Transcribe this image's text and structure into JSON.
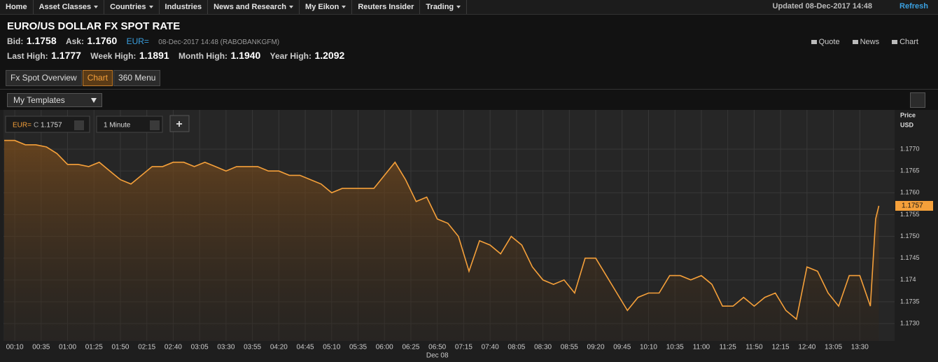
{
  "nav": {
    "items": [
      {
        "label": "Home",
        "menu": false
      },
      {
        "label": "Asset Classes",
        "menu": true
      },
      {
        "label": "Countries",
        "menu": true
      },
      {
        "label": "Industries",
        "menu": false
      },
      {
        "label": "News and Research",
        "menu": true
      },
      {
        "label": "My Eikon",
        "menu": true
      },
      {
        "label": "Reuters Insider",
        "menu": false
      },
      {
        "label": "Trading",
        "menu": true
      }
    ],
    "updated": "Updated 08-Dec-2017 14:48",
    "refresh": "Refresh"
  },
  "header": {
    "title": "EURO/US DOLLAR FX SPOT RATE",
    "bid_label": "Bid:",
    "bid": "1.1758",
    "ask_label": "Ask:",
    "ask": "1.1760",
    "ric": "EUR=",
    "timestamp": "08-Dec-2017 14:48 (RABOBANKGFM)",
    "last_high_label": "Last High:",
    "last_high": "1.1777",
    "week_high_label": "Week High:",
    "week_high": "1.1891",
    "month_high_label": "Month High:",
    "month_high": "1.1940",
    "year_high_label": "Year High:",
    "year_high": "1.2092",
    "links": [
      "Quote",
      "News",
      "Chart"
    ]
  },
  "tabs": [
    "Fx Spot Overview",
    "Chart",
    "360 Menu"
  ],
  "templates": "My Templates",
  "chart_data": {
    "type": "line",
    "price_prefix": "C",
    "interval": "1 Minute",
    "add_button": "+",
    "axis_title": "Price",
    "axis_unit": "USD",
    "x_group_label": "Dec 08",
    "grid": true,
    "xlim": [
      "00:00",
      "13:48"
    ],
    "ylim": [
      1.1726,
      1.1779
    ],
    "yticks": [
      {
        "value": 1.173,
        "label": "1.1730"
      },
      1.1735,
      1.174,
      {
        "value": 1.1745,
        "label": "1.1745"
      },
      {
        "value": 1.175,
        "label": "1.1750"
      },
      1.1755,
      {
        "value": 1.176,
        "label": "1.1760"
      },
      1.1765,
      {
        "value": 1.177,
        "label": "1.1770"
      }
    ],
    "xticks": [
      "00:10",
      "00:35",
      "01:00",
      "01:25",
      "01:50",
      "02:15",
      "02:40",
      "03:05",
      "03:30",
      "03:55",
      "04:20",
      "04:45",
      "05:10",
      "05:35",
      "06:00",
      "06:25",
      "06:50",
      "07:15",
      "07:40",
      "08:05",
      "08:30",
      "08:55",
      "09:20",
      "09:45",
      "10:10",
      "10:35",
      "11:00",
      "11:25",
      "11:50",
      "12:15",
      "12:40",
      "13:05",
      "13:30"
    ],
    "x": [
      "00:00",
      "00:10",
      "00:20",
      "00:30",
      "00:40",
      "00:50",
      "01:00",
      "01:10",
      "01:20",
      "01:30",
      "01:40",
      "01:50",
      "02:00",
      "02:10",
      "02:20",
      "02:30",
      "02:40",
      "02:50",
      "03:00",
      "03:10",
      "03:20",
      "03:30",
      "03:40",
      "03:50",
      "04:00",
      "04:10",
      "04:20",
      "04:30",
      "04:40",
      "04:50",
      "05:00",
      "05:10",
      "05:20",
      "05:30",
      "05:40",
      "05:50",
      "06:00",
      "06:10",
      "06:20",
      "06:30",
      "06:40",
      "06:50",
      "07:00",
      "07:10",
      "07:20",
      "07:30",
      "07:40",
      "07:50",
      "08:00",
      "08:10",
      "08:20",
      "08:30",
      "08:40",
      "08:50",
      "09:00",
      "09:10",
      "09:20",
      "09:30",
      "09:40",
      "09:50",
      "10:00",
      "10:10",
      "10:20",
      "10:30",
      "10:40",
      "10:50",
      "11:00",
      "11:10",
      "11:20",
      "11:30",
      "11:40",
      "11:50",
      "12:00",
      "12:10",
      "12:20",
      "12:30",
      "12:40",
      "12:50",
      "13:00",
      "13:10",
      "13:20",
      "13:30",
      "13:40",
      "13:45",
      "13:48"
    ],
    "series": [
      {
        "name": "EUR=",
        "color": "#f5a03a",
        "values": [
          1.1772,
          1.1772,
          1.1771,
          1.1771,
          1.17705,
          1.1769,
          1.17665,
          1.17665,
          1.1766,
          1.1767,
          1.1765,
          1.1763,
          1.1762,
          1.1764,
          1.1766,
          1.1766,
          1.1767,
          1.1767,
          1.1766,
          1.1767,
          1.1766,
          1.1765,
          1.1766,
          1.1766,
          1.1766,
          1.1765,
          1.1765,
          1.1764,
          1.1764,
          1.1763,
          1.1762,
          1.176,
          1.1761,
          1.1761,
          1.1761,
          1.1761,
          1.1764,
          1.1767,
          1.1763,
          1.1758,
          1.1759,
          1.1754,
          1.1753,
          1.175,
          1.1742,
          1.1749,
          1.1748,
          1.1746,
          1.175,
          1.1748,
          1.1743,
          1.174,
          1.1739,
          1.174,
          1.1737,
          1.1745,
          1.1745,
          1.1741,
          1.1737,
          1.1733,
          1.1736,
          1.1737,
          1.1737,
          1.1741,
          1.1741,
          1.174,
          1.1741,
          1.1739,
          1.1734,
          1.1734,
          1.1736,
          1.1734,
          1.1736,
          1.1737,
          1.1733,
          1.1731,
          1.1743,
          1.1742,
          1.1737,
          1.1734,
          1.1741,
          1.1741,
          1.1734,
          1.1754,
          1.1757
        ]
      }
    ]
  }
}
